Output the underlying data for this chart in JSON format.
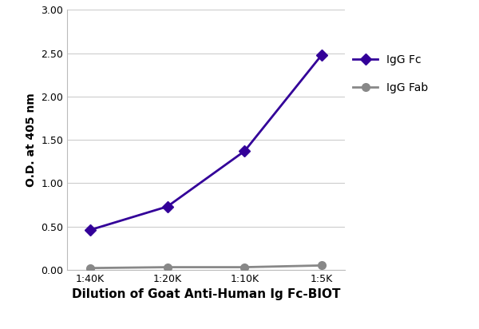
{
  "x_labels": [
    "1:40K",
    "1:20K",
    "1:10K",
    "1:5K"
  ],
  "x_values": [
    1,
    2,
    3,
    4
  ],
  "igg_fc_values": [
    0.46,
    0.73,
    1.37,
    2.48
  ],
  "igg_fab_values": [
    0.02,
    0.03,
    0.03,
    0.05
  ],
  "igg_fc_color": "#330099",
  "igg_fab_color": "#888888",
  "xlabel": "Dilution of Goat Anti-Human Ig Fc-BIOT",
  "ylabel": "O.D. at 405 nm",
  "ylim": [
    0.0,
    3.0
  ],
  "yticks": [
    0.0,
    0.5,
    1.0,
    1.5,
    2.0,
    2.5,
    3.0
  ],
  "legend_labels": [
    "IgG Fc",
    "IgG Fab"
  ],
  "linewidth": 2.0,
  "markersize": 7,
  "fc_marker": "D",
  "fab_marker": "o",
  "xlabel_fontsize": 11,
  "ylabel_fontsize": 10,
  "tick_fontsize": 9,
  "legend_fontsize": 10,
  "background_color": "#ffffff",
  "grid_color": "#cccccc"
}
